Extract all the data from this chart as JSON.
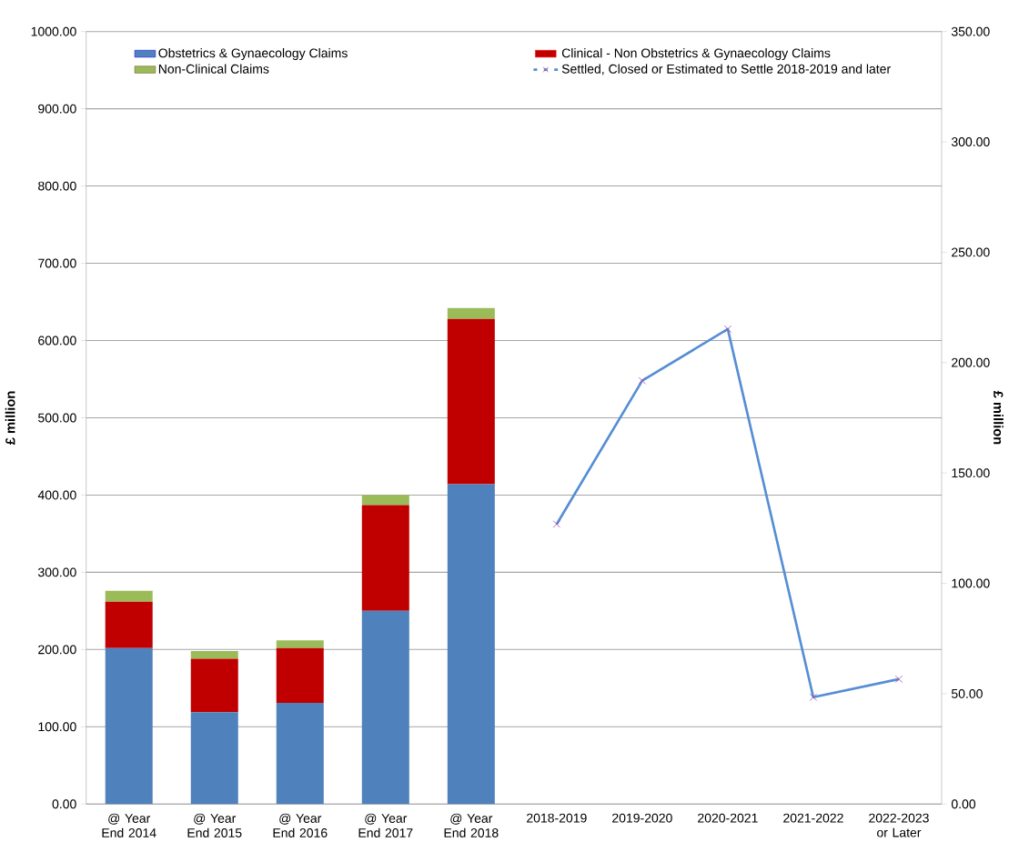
{
  "chart_data": {
    "type": "bar",
    "stacked": true,
    "categories": [
      "@ Year End 2014",
      "@ Year End 2015",
      "@ Year End 2016",
      "@ Year End 2017",
      "@ Year End 2018",
      "2018-2019",
      "2019-2020",
      "2020-2021",
      "2021-2022",
      "2022-2023 or Later"
    ],
    "series": [
      {
        "name": "Obstetrics & Gynaecology Claims",
        "color": "#4f81bd",
        "values": [
          202,
          119,
          131,
          250,
          414,
          null,
          null,
          null,
          null,
          null
        ]
      },
      {
        "name": "Clinical - Non Obstetrics & Gynaecology Claims",
        "color": "#c00000",
        "values": [
          60,
          69,
          71,
          137,
          214,
          null,
          null,
          null,
          null,
          null
        ]
      },
      {
        "name": "Non-Clinical Claims",
        "color": "#9bbb59",
        "values": [
          14,
          10,
          10,
          13,
          14,
          null,
          null,
          null,
          null,
          null
        ]
      },
      {
        "name": "Settled, Closed or Estimated to Settle 2018-2019 and later",
        "type": "line",
        "axis": "y2",
        "color": "#558ed5",
        "marker": "cross",
        "line_style": "solid",
        "values": [
          null,
          null,
          null,
          null,
          null,
          126.8,
          191.8,
          215.2,
          48.4,
          56.6
        ]
      }
    ],
    "ylabel": "£ million",
    "y2label": "£ million",
    "ylim": [
      0,
      1000
    ],
    "yticks": [
      {
        "value": 0,
        "label": "0.00"
      },
      {
        "value": 100,
        "label": "100.00"
      },
      {
        "value": 200,
        "label": "200.00"
      },
      {
        "value": 300,
        "label": "300.00"
      },
      {
        "value": 400,
        "label": "400.00"
      },
      {
        "value": 500,
        "label": "500.00"
      },
      {
        "value": 600,
        "label": "600.00"
      },
      {
        "value": 700,
        "label": "700.00"
      },
      {
        "value": 800,
        "label": "800.00"
      },
      {
        "value": 900,
        "label": "900.00"
      },
      {
        "value": 1000,
        "label": "1000.00"
      }
    ],
    "y2lim": [
      0,
      350
    ],
    "y2ticks": [
      {
        "value": 0,
        "label": "0.00"
      },
      {
        "value": 50,
        "label": "50.00"
      },
      {
        "value": 100,
        "label": "100.00"
      },
      {
        "value": 150,
        "label": "150.00"
      },
      {
        "value": 200,
        "label": "200.00"
      },
      {
        "value": 250,
        "label": "250.00"
      },
      {
        "value": 300,
        "label": "300.00"
      },
      {
        "value": 350,
        "label": "350.00"
      }
    ],
    "grid": "y",
    "legend": "top"
  }
}
